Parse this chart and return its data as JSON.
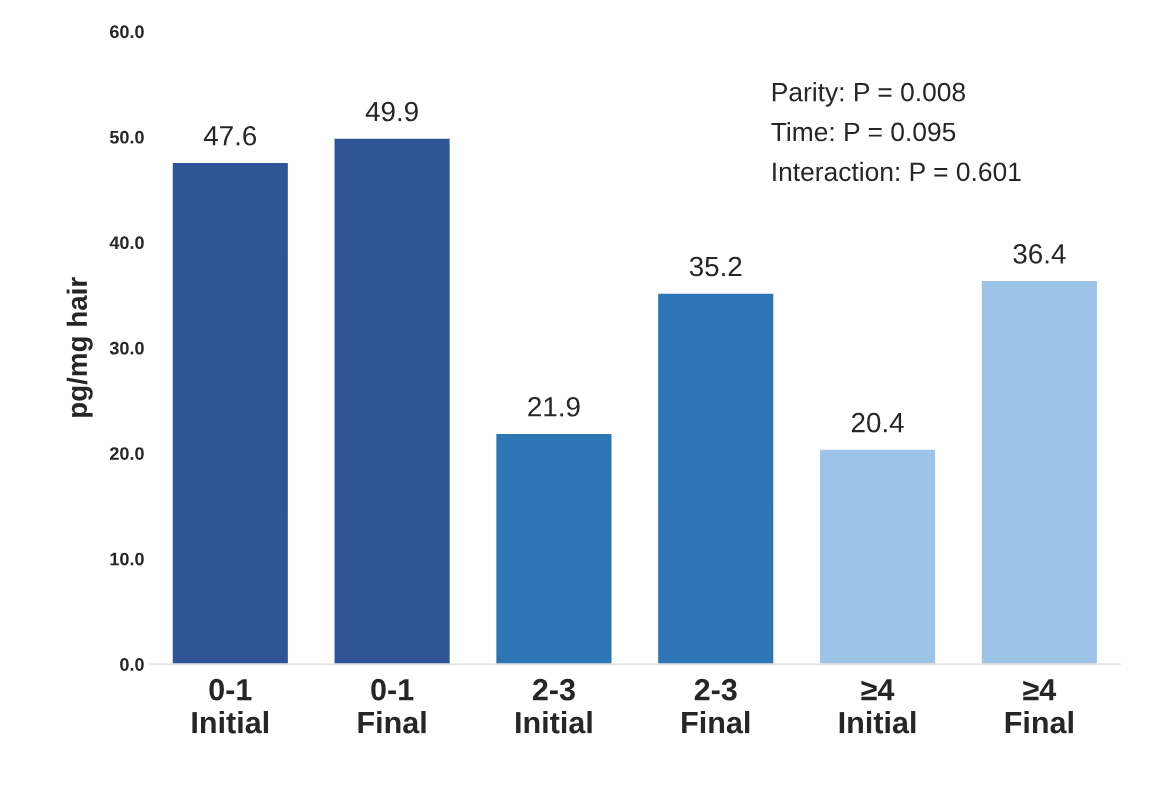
{
  "chart_data": {
    "type": "bar",
    "ylabel": "pg/mg hair",
    "categories": [
      "0-1\nInitial",
      "0-1\nFinal",
      "2-3\nInitial",
      "2-3\nFinal",
      "≥4\nInitial",
      "≥4\nFinal"
    ],
    "values": [
      47.6,
      49.9,
      21.9,
      35.2,
      20.4,
      36.4
    ],
    "colors": [
      "#2f5597",
      "#2f5597",
      "#2e75b6",
      "#2e75b6",
      "#9dc3e6",
      "#9dc3e6"
    ],
    "ylim": [
      0,
      60
    ],
    "yticks": [
      {
        "value": 0,
        "label": "0.0"
      },
      {
        "value": 10,
        "label": "10.0"
      },
      {
        "value": 20,
        "label": "20.0"
      },
      {
        "value": 30,
        "label": "30.0"
      },
      {
        "value": 40,
        "label": "40.0"
      },
      {
        "value": 50,
        "label": "50.0"
      },
      {
        "value": 60,
        "label": "60.0"
      }
    ],
    "data_labels": true,
    "grid": false,
    "legend": false,
    "annotations": [
      "Parity: P = 0.008",
      "Time: P = 0.095",
      "Interaction: P = 0.601"
    ]
  }
}
